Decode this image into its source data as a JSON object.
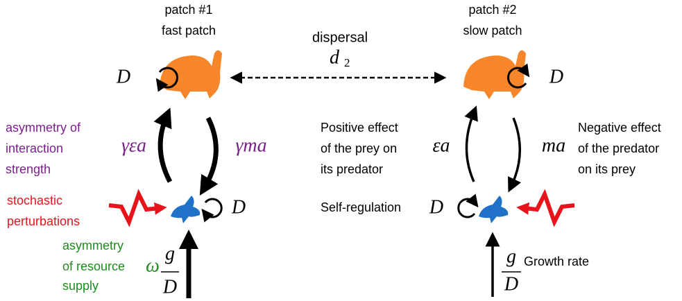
{
  "patches": [
    {
      "number": "patch #1",
      "name": "fast patch",
      "self_loop": "D"
    },
    {
      "number": "patch #2",
      "name": "slow patch",
      "self_loop": "D"
    }
  ],
  "dispersal": {
    "label": "dispersal",
    "symbol": "d",
    "subscript": "2"
  },
  "prey": [
    {
      "self_loop": "D"
    },
    {
      "self_loop": "D"
    }
  ],
  "fast_rates": {
    "up": "γεa",
    "down": "γma",
    "supply_prefix": "ω",
    "supply_numerator": "g",
    "supply_denominator": "D"
  },
  "slow_rates": {
    "up": "εa",
    "down": "ma",
    "supply_numerator": "g",
    "supply_denominator": "D"
  },
  "notes": {
    "interaction": [
      "asymmetry of",
      "interaction",
      "strength"
    ],
    "stochastic": [
      "stochastic",
      "perturbations"
    ],
    "resource": [
      "asymmetry",
      "of resource",
      "supply"
    ],
    "positive": [
      "Positive effect",
      "of the prey on",
      "its predator"
    ],
    "negative": [
      "Negative effect",
      "of the predator",
      "on its prey"
    ],
    "self_regulation": "Self-regulation",
    "growth_rate": "Growth rate"
  }
}
